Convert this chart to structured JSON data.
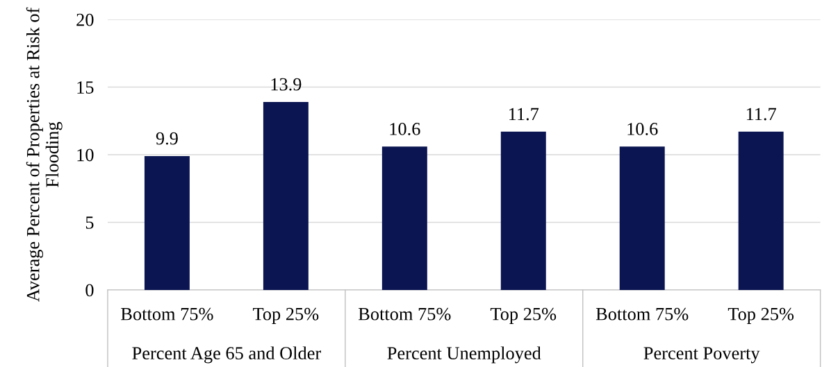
{
  "chart_data": {
    "type": "bar",
    "ylabel": "Average Percent of Properties at Risk of Flooding",
    "categories": [
      "Bottom 75%",
      "Top 25%",
      "Bottom 75%",
      "Top 25%",
      "Bottom 75%",
      "Top 25%"
    ],
    "values": [
      9.9,
      13.9,
      10.6,
      11.7,
      10.6,
      11.7
    ],
    "color": "#0b1551",
    "ylim": [
      0,
      20
    ],
    "yticks": [
      0,
      5,
      10,
      15,
      20
    ],
    "grid": "y",
    "data_labels": true,
    "annotations": [
      "Percent Age 65 and Older",
      "Percent Unemployed",
      "Percent Poverty"
    ]
  }
}
